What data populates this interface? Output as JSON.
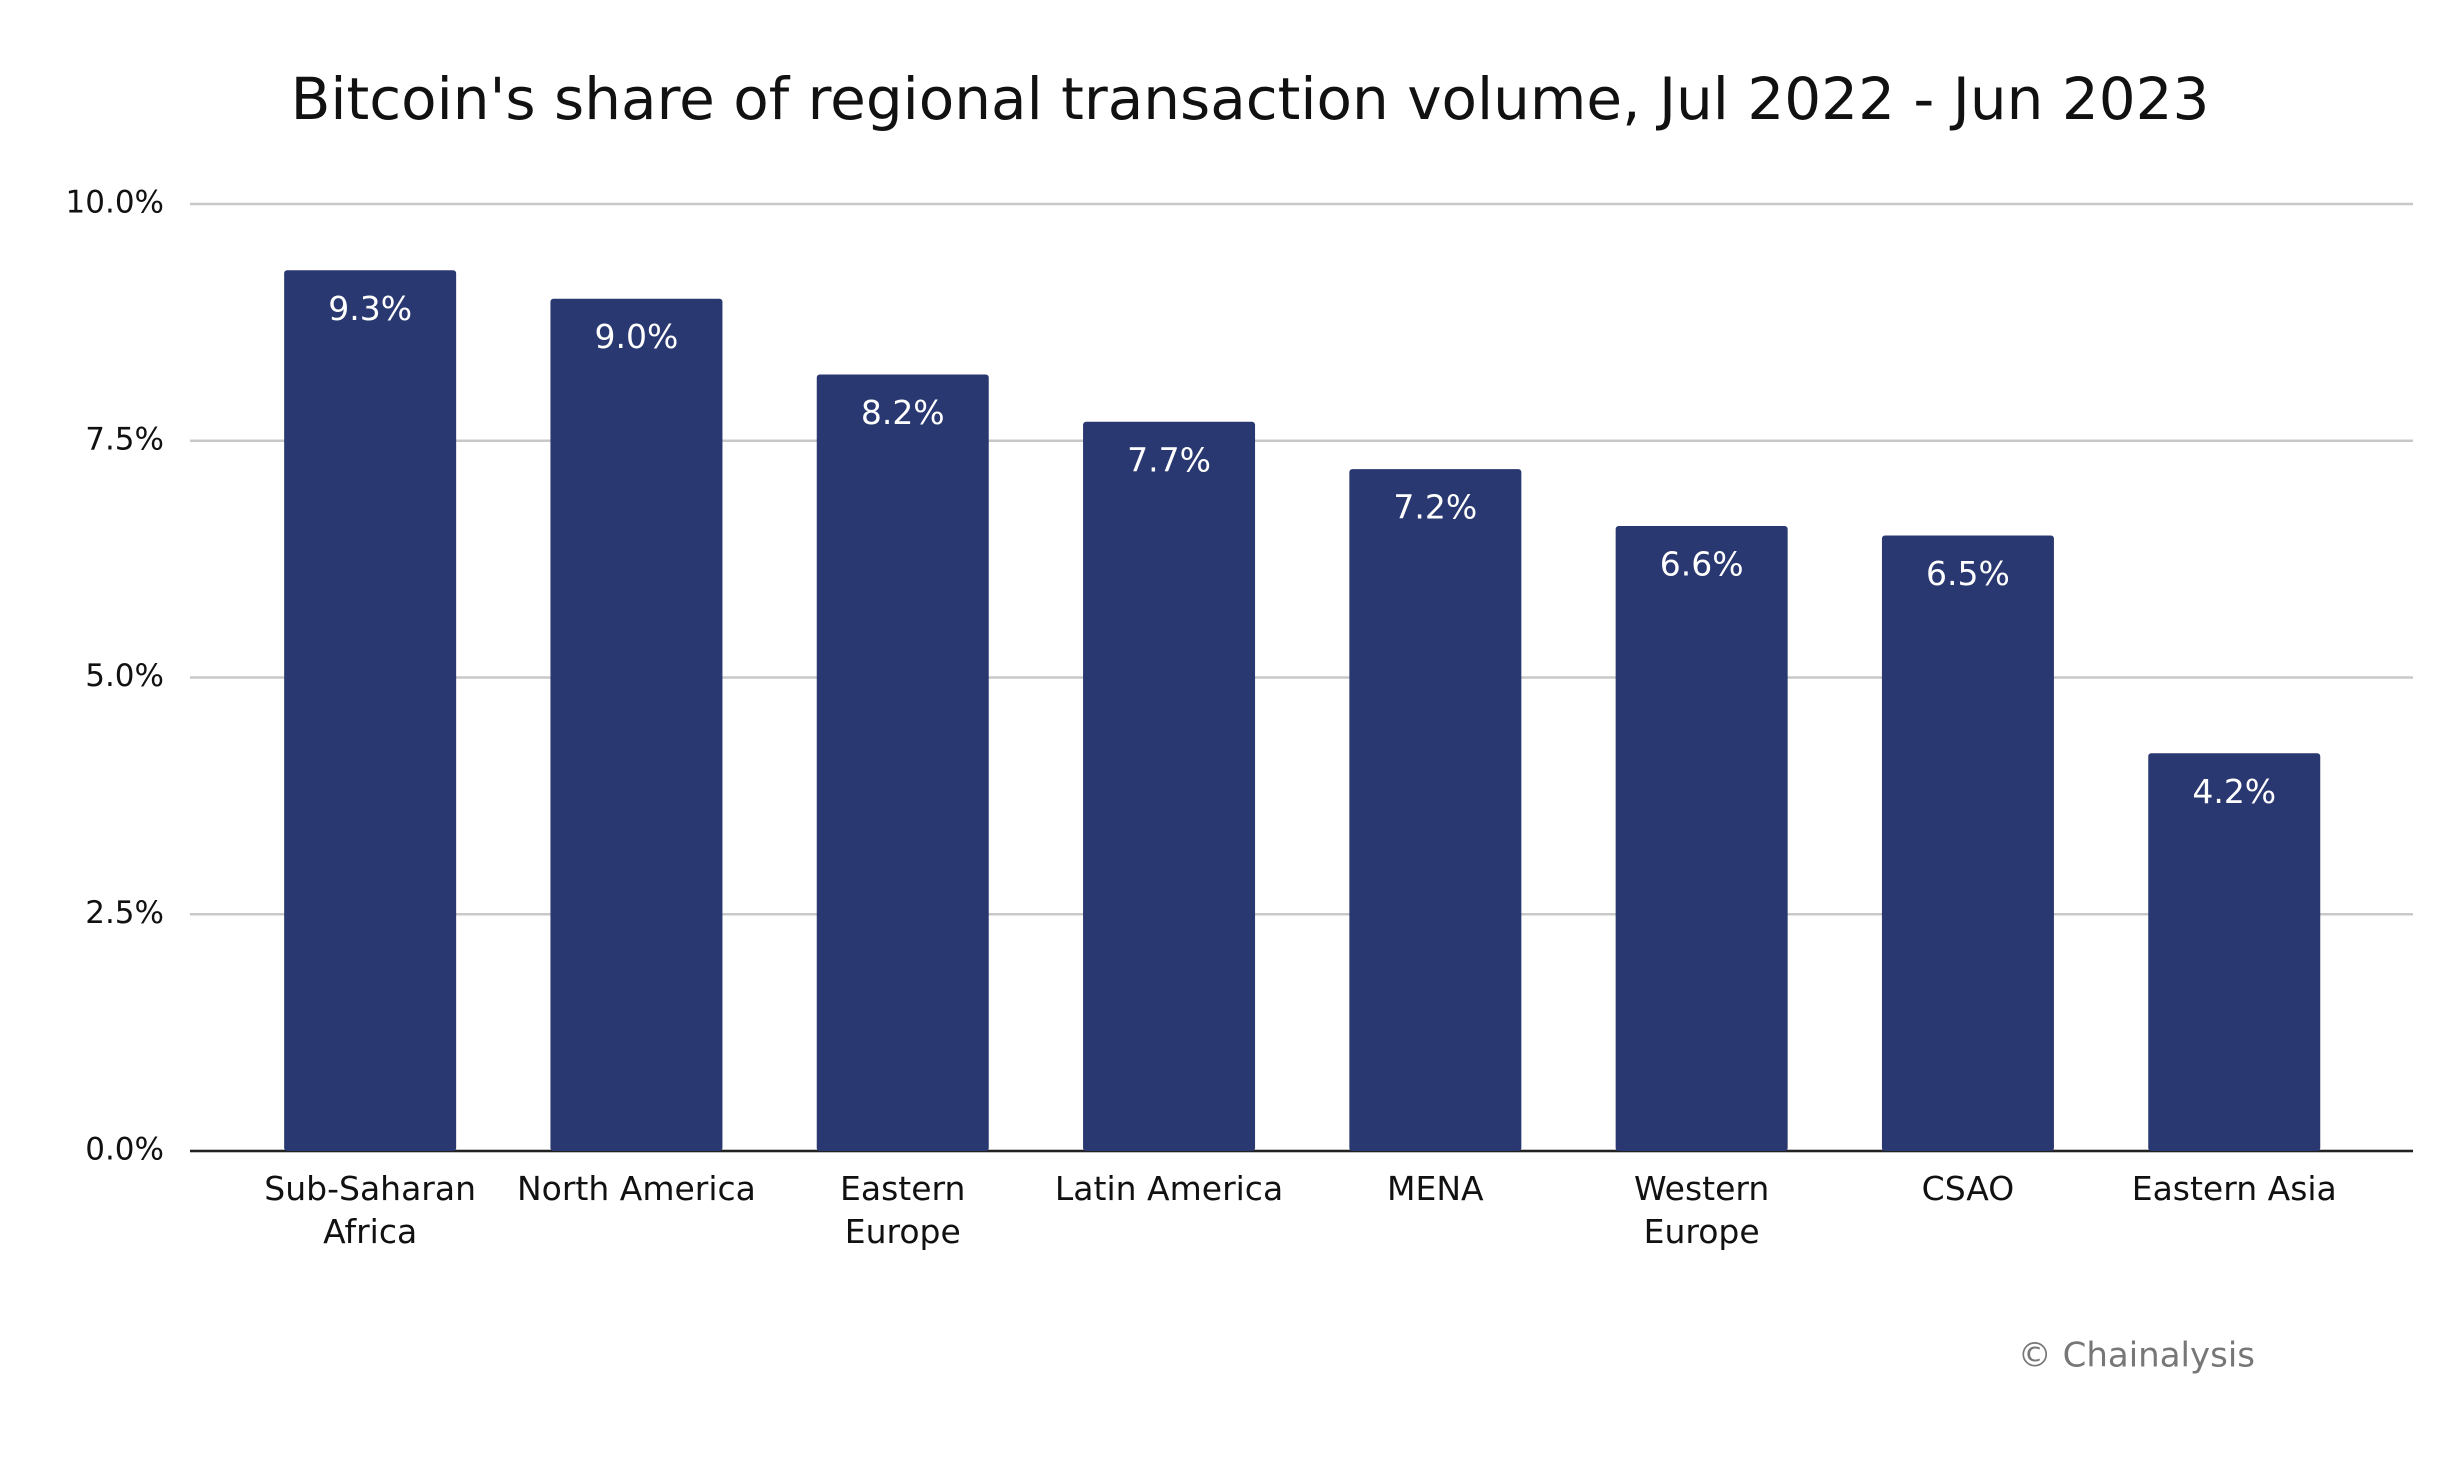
{
  "chart_data": {
    "type": "bar",
    "title": "Bitcoin's share of regional transaction volume, Jul 2022 - Jun 2023",
    "categories": [
      "Sub-Saharan\nAfrica",
      "North America",
      "Eastern\nEurope",
      "Latin America",
      "MENA",
      "Western\nEurope",
      "CSAO",
      "Eastern Asia"
    ],
    "values": [
      9.3,
      9.0,
      8.2,
      7.7,
      7.2,
      6.6,
      6.5,
      4.2
    ],
    "value_labels": [
      "9.3%",
      "9.0%",
      "8.2%",
      "7.7%",
      "7.2%",
      "6.6%",
      "6.5%",
      "4.2%"
    ],
    "color": "#293871",
    "ylim": [
      0,
      10
    ],
    "yticks": [
      {
        "value": 0,
        "label": "0.0%"
      },
      {
        "value": 2.5,
        "label": "2.5%"
      },
      {
        "value": 5,
        "label": "5.0%"
      },
      {
        "value": 7.5,
        "label": "7.5%"
      },
      {
        "value": 10,
        "label": "10.0%"
      }
    ],
    "grid": true,
    "watermark": "© Chainalysis"
  }
}
